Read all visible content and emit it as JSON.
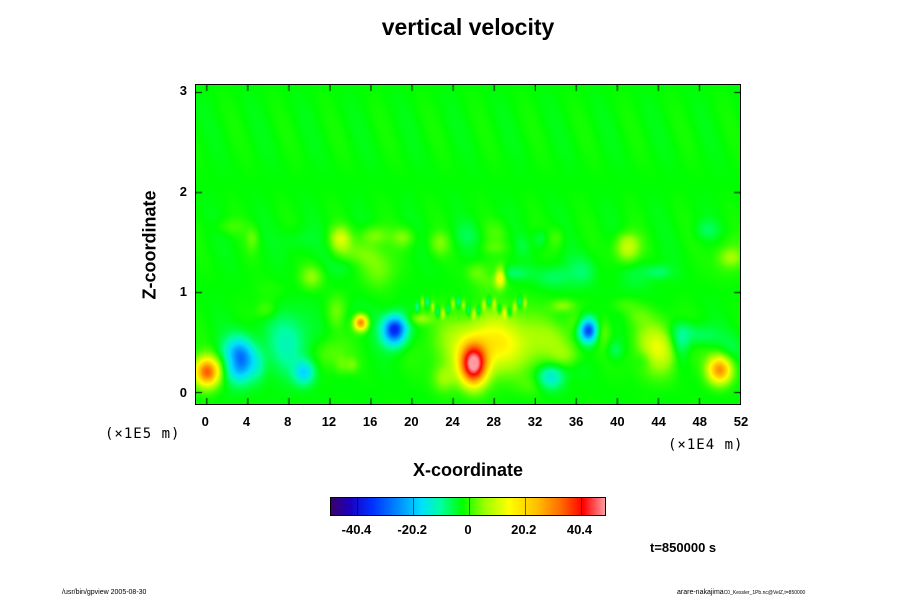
{
  "chart_data": {
    "type": "heatmap",
    "title": "vertical velocity",
    "xlabel": "X-coordinate",
    "ylabel": "Z-coordinate",
    "x_ticks": [
      "0",
      "4",
      "8",
      "12",
      "16",
      "20",
      "24",
      "28",
      "32",
      "36",
      "40",
      "44",
      "48",
      "52"
    ],
    "y_ticks": [
      "0",
      "1",
      "2",
      "3"
    ],
    "x_scale_note": "(×1E4 m)",
    "y_scale_note": "(×1E5 m)",
    "xlim": [
      -1,
      52
    ],
    "ylim": [
      -0.12,
      3.07
    ],
    "colorbar": {
      "ticks": [
        "-40.4",
        "-20.2",
        "0",
        "20.2",
        "40.4"
      ],
      "tick_values": [
        -40.4,
        -20.2,
        0,
        20.2,
        40.4
      ],
      "range": [
        -50,
        50
      ],
      "colors": [
        "#3a006a",
        "#1a00c0",
        "#0030ff",
        "#0090ff",
        "#00e0ff",
        "#00ffa0",
        "#00ff00",
        "#9aff00",
        "#ffff00",
        "#ffc000",
        "#ff6a00",
        "#ff0000",
        "#ff9aa0"
      ]
    },
    "features": [
      {
        "x": 3.2,
        "z": 0.33,
        "value": -32,
        "rx": 1.5,
        "rz": 0.2
      },
      {
        "x": 15.0,
        "z": 0.7,
        "value": 34,
        "rx": 0.7,
        "rz": 0.08
      },
      {
        "x": 18.3,
        "z": 0.62,
        "value": -35,
        "rx": 1.2,
        "rz": 0.15
      },
      {
        "x": 26.0,
        "z": 0.27,
        "value": 44,
        "rx": 1.3,
        "rz": 0.2
      },
      {
        "x": 28.6,
        "z": 1.15,
        "value": 18,
        "rx": 0.5,
        "rz": 0.1
      },
      {
        "x": 37.2,
        "z": 0.62,
        "value": -34,
        "rx": 0.9,
        "rz": 0.12
      },
      {
        "x": 50.0,
        "z": 0.23,
        "value": 30,
        "rx": 1.2,
        "rz": 0.14
      },
      {
        "x": 0.0,
        "z": 0.2,
        "value": 26,
        "rx": 1.2,
        "rz": 0.15
      },
      {
        "x": 28.0,
        "z": 0.5,
        "value": 18,
        "rx": 5.0,
        "rz": 0.3
      },
      {
        "x": 8.0,
        "z": 0.5,
        "value": -10,
        "rx": 2.0,
        "rz": 0.3
      },
      {
        "x": 44.0,
        "z": 0.45,
        "value": 15,
        "rx": 2.5,
        "rz": 0.25
      },
      {
        "x": 13.0,
        "z": 1.55,
        "value": 13,
        "rx": 1.0,
        "rz": 0.15
      },
      {
        "x": 41.0,
        "z": 1.45,
        "value": 13,
        "rx": 1.2,
        "rz": 0.15
      },
      {
        "x": 9.5,
        "z": 0.2,
        "value": -16,
        "rx": 1.0,
        "rz": 0.12
      },
      {
        "x": 33.5,
        "z": 0.15,
        "value": -14,
        "rx": 1.3,
        "rz": 0.12
      }
    ]
  },
  "time_label": "t=850000 s",
  "footer": {
    "left": "/usr/bin/gpview 2005-08-30",
    "right_main": "arare-nakajima",
    "right_small": "C0_Kessler_1Pb.nc@VelZ,t=850000"
  }
}
